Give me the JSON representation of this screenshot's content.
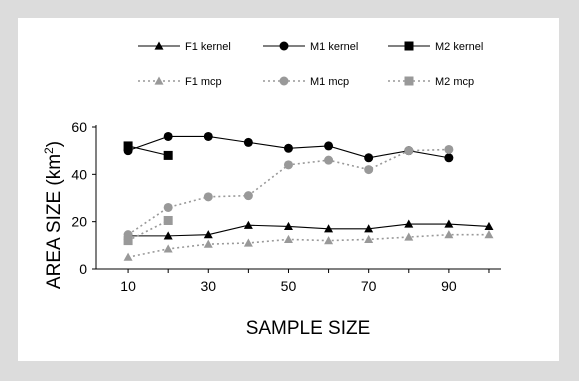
{
  "chart_data": {
    "type": "line",
    "title": "",
    "xlabel": "SAMPLE SIZE",
    "ylabel_main": "AREA SIZE (km",
    "ylabel_sup": "2",
    "ylabel_close": ")",
    "xlim": [
      2,
      103
    ],
    "ylim": [
      0,
      60
    ],
    "xticks": [
      "10",
      "30",
      "50",
      "70",
      "90"
    ],
    "yticks": [
      "0",
      "20",
      "40",
      "60"
    ],
    "grid": false,
    "legend_position": "top",
    "series": [
      {
        "name": "F1 kernel",
        "style": "solid",
        "marker": "triangle",
        "color": "#000000",
        "x": [
          10,
          20,
          30,
          40,
          50,
          60,
          70,
          80,
          90,
          100
        ],
        "y": [
          14,
          14,
          14.5,
          18.5,
          18,
          17,
          17,
          19,
          19,
          18
        ]
      },
      {
        "name": "M1 kernel",
        "style": "solid",
        "marker": "circle",
        "color": "#000000",
        "x": [
          10,
          20,
          30,
          40,
          50,
          60,
          70,
          80,
          90
        ],
        "y": [
          50,
          56,
          56,
          53.5,
          51,
          52,
          47,
          50,
          47
        ]
      },
      {
        "name": "M2 kernel",
        "style": "solid",
        "marker": "square",
        "color": "#000000",
        "x": [
          10,
          20
        ],
        "y": [
          52,
          48
        ]
      },
      {
        "name": "F1 mcp",
        "style": "dotted",
        "marker": "triangle",
        "color": "#999999",
        "x": [
          10,
          20,
          30,
          40,
          50,
          60,
          70,
          80,
          90,
          100
        ],
        "y": [
          5,
          8.5,
          10.5,
          11,
          12.5,
          12,
          12.5,
          13.5,
          14.5,
          14.5
        ]
      },
      {
        "name": "M1 mcp",
        "style": "dotted",
        "marker": "circle",
        "color": "#999999",
        "x": [
          10,
          20,
          30,
          40,
          50,
          60,
          70,
          80,
          90
        ],
        "y": [
          14.5,
          26,
          30.5,
          31,
          44,
          46,
          42,
          50,
          50.5
        ]
      },
      {
        "name": "M2 mcp",
        "style": "dotted",
        "marker": "square",
        "color": "#999999",
        "x": [
          10,
          20
        ],
        "y": [
          12,
          20.5
        ]
      }
    ]
  }
}
